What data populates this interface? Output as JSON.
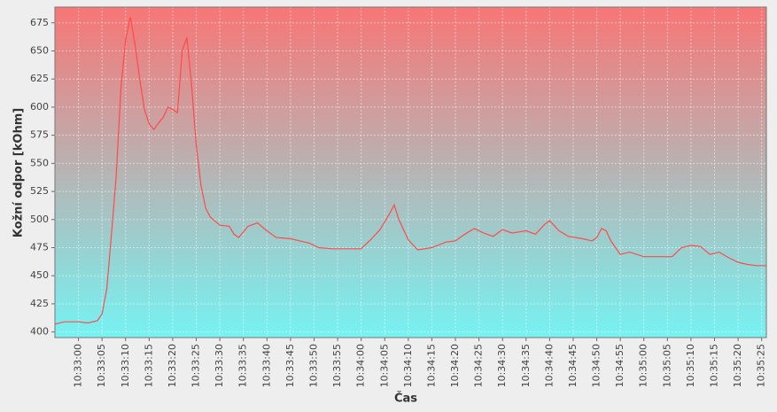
{
  "chart_data": {
    "type": "line",
    "x_label": "Čas",
    "y_label": "Kožní odpor [kOhm]",
    "x": [
      "10:32:55",
      "10:32:57",
      "10:33:00",
      "10:33:02",
      "10:33:04",
      "10:33:05",
      "10:33:06",
      "10:33:07",
      "10:33:08",
      "10:33:09",
      "10:33:10",
      "10:33:11",
      "10:33:12",
      "10:33:13",
      "10:33:14",
      "10:33:15",
      "10:33:16",
      "10:33:17",
      "10:33:18",
      "10:33:19",
      "10:33:20",
      "10:33:21",
      "10:33:22",
      "10:33:23",
      "10:33:24",
      "10:33:25",
      "10:33:26",
      "10:33:27",
      "10:33:28",
      "10:33:30",
      "10:33:32",
      "10:33:33",
      "10:33:34",
      "10:33:36",
      "10:33:38",
      "10:33:40",
      "10:33:42",
      "10:33:45",
      "10:33:47",
      "10:33:49",
      "10:33:51",
      "10:33:54",
      "10:33:57",
      "10:34:00",
      "10:34:02",
      "10:34:04",
      "10:34:06",
      "10:34:07",
      "10:34:08",
      "10:34:10",
      "10:34:12",
      "10:34:15",
      "10:34:18",
      "10:34:20",
      "10:34:22",
      "10:34:24",
      "10:34:26",
      "10:34:28",
      "10:34:30",
      "10:34:32",
      "10:34:35",
      "10:34:37",
      "10:34:39",
      "10:34:40",
      "10:34:42",
      "10:34:44",
      "10:34:47",
      "10:34:49",
      "10:34:50",
      "10:34:51",
      "10:34:52",
      "10:34:53",
      "10:34:55",
      "10:34:57",
      "10:35:00",
      "10:35:04",
      "10:35:06",
      "10:35:08",
      "10:35:10",
      "10:35:12",
      "10:35:14",
      "10:35:16",
      "10:35:18",
      "10:35:20",
      "10:35:22",
      "10:35:24",
      "10:35:26"
    ],
    "values": [
      407,
      409,
      409,
      408,
      410,
      416,
      438,
      487,
      538,
      617,
      660,
      680,
      656,
      625,
      598,
      585,
      580,
      586,
      591,
      600,
      598,
      595,
      650,
      662,
      620,
      566,
      530,
      510,
      502,
      495,
      494,
      487,
      484,
      494,
      497,
      490,
      484,
      483,
      481,
      479,
      475,
      474,
      474,
      474,
      482,
      491,
      505,
      513,
      500,
      482,
      473,
      475,
      480,
      481,
      487,
      492,
      488,
      485,
      491,
      488,
      490,
      487,
      496,
      499,
      490,
      485,
      483,
      481,
      484,
      492,
      490,
      481,
      469,
      471,
      467,
      467,
      467,
      475,
      477,
      476,
      469,
      471,
      466,
      462,
      460,
      459,
      459
    ],
    "color": "#ff4a4a",
    "background_gradient": [
      "#f87676",
      "#76f2f2"
    ],
    "xlim": [
      "10:32:55",
      "10:35:26"
    ],
    "xticks": [
      "10:33:00",
      "10:33:05",
      "10:33:10",
      "10:33:15",
      "10:33:20",
      "10:33:25",
      "10:33:30",
      "10:33:35",
      "10:33:40",
      "10:33:45",
      "10:33:50",
      "10:33:55",
      "10:34:00",
      "10:34:05",
      "10:34:10",
      "10:34:15",
      "10:34:20",
      "10:34:25",
      "10:34:30",
      "10:34:35",
      "10:34:40",
      "10:34:45",
      "10:34:50",
      "10:34:55",
      "10:35:00",
      "10:35:05",
      "10:35:10",
      "10:35:15",
      "10:35:20",
      "10:35:25"
    ],
    "ylim": [
      395,
      689
    ],
    "yticks": [
      400,
      425,
      450,
      475,
      500,
      525,
      550,
      575,
      600,
      625,
      650,
      675
    ],
    "grid": true
  }
}
